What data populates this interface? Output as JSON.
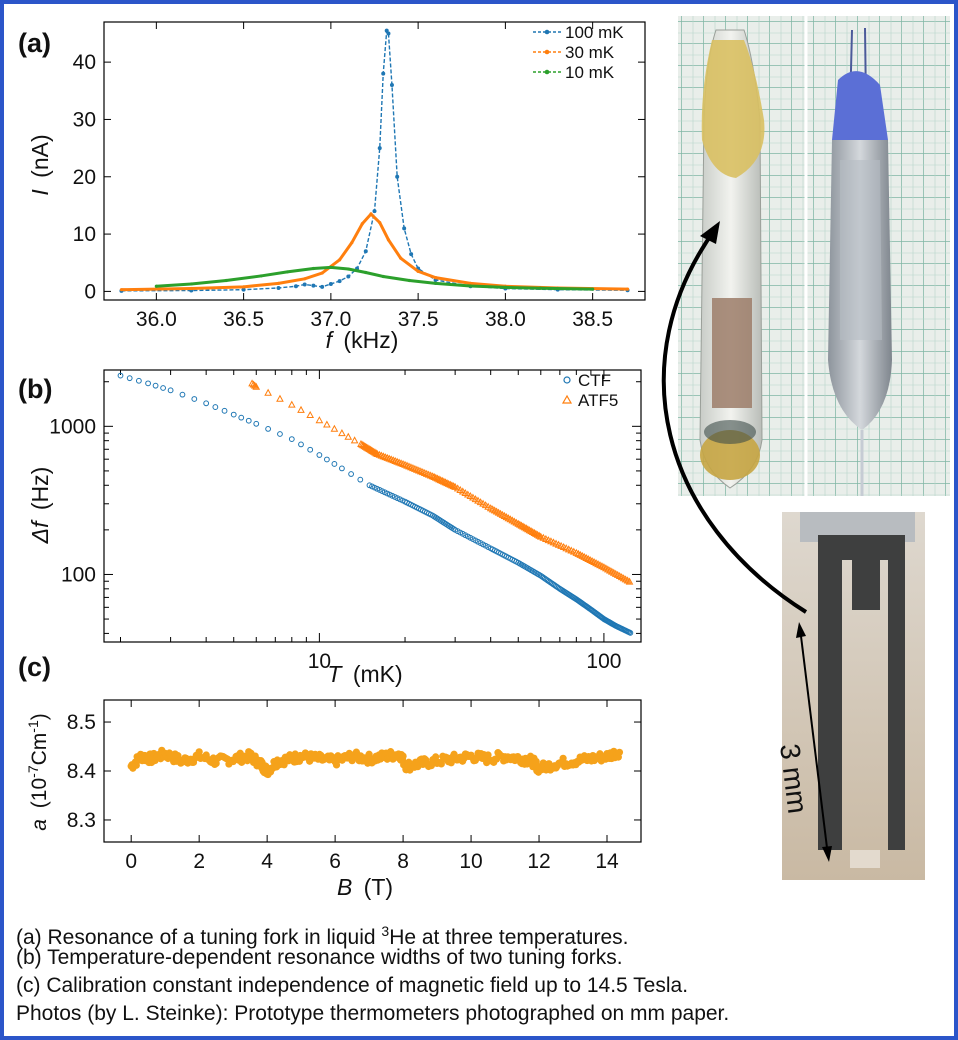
{
  "colors": {
    "border": "#2b55c9",
    "blue": "#1f77b4",
    "orange": "#ff7f0e",
    "green": "#2ca02c",
    "gold": "#f5a21b"
  },
  "panel_labels": {
    "a": "(a)",
    "b": "(b)",
    "c": "(c)"
  },
  "chart_data": [
    {
      "type": "line",
      "panel": "a",
      "xlabel_var": "f",
      "xlabel_unit": "(kHz)",
      "ylabel_var": "I",
      "ylabel_unit": "(nA)",
      "xlim": [
        35.7,
        38.8
      ],
      "ylim": [
        -1.5,
        47
      ],
      "xticks": [
        "36.0",
        "36.5",
        "37.0",
        "37.5",
        "38.0",
        "38.5"
      ],
      "yticks": [
        "0",
        "10",
        "20",
        "30",
        "40"
      ],
      "legend_position": "top-right",
      "series": [
        {
          "name": "100 mK",
          "color": "#1f77b4",
          "x": [
            35.8,
            36.2,
            36.5,
            36.7,
            36.8,
            36.85,
            36.9,
            36.95,
            37.0,
            37.05,
            37.1,
            37.15,
            37.2,
            37.25,
            37.28,
            37.3,
            37.32,
            37.33,
            37.35,
            37.38,
            37.42,
            37.46,
            37.5,
            37.6,
            37.8,
            38.0,
            38.3,
            38.7
          ],
          "y": [
            0.1,
            0.15,
            0.3,
            0.6,
            0.9,
            1.2,
            1.0,
            0.8,
            1.3,
            1.8,
            2.6,
            4.0,
            7.0,
            14.0,
            25.0,
            38.0,
            45.5,
            45.0,
            36.0,
            20.0,
            11.0,
            6.5,
            4.0,
            2.0,
            0.9,
            0.5,
            0.3,
            0.2
          ]
        },
        {
          "name": "30 mK",
          "color": "#ff7f0e",
          "x": [
            35.8,
            36.2,
            36.5,
            36.7,
            36.85,
            36.95,
            37.05,
            37.12,
            37.18,
            37.23,
            37.28,
            37.33,
            37.4,
            37.5,
            37.6,
            37.8,
            38.0,
            38.3,
            38.7
          ],
          "y": [
            0.3,
            0.5,
            0.8,
            1.4,
            2.2,
            3.2,
            5.5,
            8.5,
            11.8,
            13.5,
            12.0,
            9.0,
            5.8,
            3.5,
            2.4,
            1.4,
            0.9,
            0.6,
            0.4
          ]
        },
        {
          "name": "10 mK",
          "color": "#2ca02c",
          "x": [
            36.0,
            36.2,
            36.4,
            36.6,
            36.75,
            36.9,
            37.0,
            37.1,
            37.2,
            37.3,
            37.45,
            37.6,
            37.8,
            38.0,
            38.2,
            38.5
          ],
          "y": [
            0.9,
            1.3,
            1.9,
            2.7,
            3.4,
            4.0,
            4.2,
            3.9,
            3.3,
            2.6,
            1.9,
            1.4,
            0.95,
            0.7,
            0.55,
            0.4
          ]
        }
      ]
    },
    {
      "type": "scatter",
      "panel": "b",
      "xlabel_var": "T",
      "xlabel_unit": "(mK)",
      "ylabel_var": "Δf",
      "ylabel_unit": "(Hz)",
      "x_scale": "log",
      "y_scale": "log",
      "xlim": [
        1.75,
        135
      ],
      "ylim": [
        35,
        2400
      ],
      "xticks": [
        "10",
        "100"
      ],
      "yticks": [
        "100",
        "1000"
      ],
      "legend_position": "top-right",
      "series": [
        {
          "name": "CTF",
          "color": "#1f77b4",
          "marker": "circle",
          "x": [
            2,
            2.5,
            3,
            4,
            5,
            6,
            8,
            10,
            12,
            15,
            20,
            25,
            30,
            40,
            50,
            60,
            70,
            80,
            90,
            100,
            110,
            125
          ],
          "y": [
            2200,
            1950,
            1750,
            1430,
            1200,
            1040,
            820,
            640,
            520,
            400,
            310,
            250,
            200,
            150,
            120,
            98,
            80,
            68,
            58,
            50,
            45,
            40
          ]
        },
        {
          "name": "ATF5",
          "color": "#ff7f0e",
          "marker": "triangle",
          "x": [
            5.8,
            6,
            8,
            10,
            12,
            14,
            16,
            20,
            25,
            30,
            40,
            50,
            60,
            80,
            100,
            125
          ],
          "y": [
            1950,
            1850,
            1400,
            1100,
            900,
            760,
            650,
            550,
            460,
            390,
            280,
            220,
            180,
            140,
            112,
            88
          ]
        }
      ]
    },
    {
      "type": "scatter",
      "panel": "c",
      "xlabel_var": "B",
      "xlabel_unit": "(T)",
      "ylabel_var": "a",
      "ylabel_unit_pre": "(10",
      "ylabel_unit_sup1": "-7",
      "ylabel_unit_mid": "Cm",
      "ylabel_unit_sup2": "-1",
      "ylabel_unit_post": ")",
      "xlim": [
        -0.8,
        15
      ],
      "ylim": [
        8.255,
        8.545
      ],
      "xticks": [
        "0",
        "2",
        "4",
        "6",
        "8",
        "10",
        "12",
        "14"
      ],
      "yticks": [
        "8.3",
        "8.4",
        "8.5"
      ],
      "series": [
        {
          "name": "",
          "color": "#f5a21b",
          "x": [
            0,
            0.3,
            0.6,
            1.0,
            1.5,
            2.0,
            2.5,
            3.0,
            3.5,
            3.8,
            4.0,
            4.3,
            4.7,
            5.0,
            5.5,
            6.0,
            6.5,
            7.0,
            7.5,
            7.9,
            8.1,
            8.5,
            9.0,
            9.5,
            10.0,
            10.5,
            11.0,
            11.5,
            11.8,
            12.0,
            12.5,
            13.0,
            13.5,
            14.0,
            14.4
          ],
          "y": [
            8.41,
            8.43,
            8.425,
            8.435,
            8.42,
            8.43,
            8.42,
            8.425,
            8.43,
            8.415,
            8.4,
            8.42,
            8.425,
            8.43,
            8.425,
            8.42,
            8.43,
            8.425,
            8.43,
            8.435,
            8.41,
            8.415,
            8.42,
            8.425,
            8.43,
            8.425,
            8.43,
            8.425,
            8.42,
            8.405,
            8.415,
            8.42,
            8.425,
            8.43,
            8.44
          ]
        }
      ]
    }
  ],
  "photo_annotation": {
    "scale_label": "3 mm"
  },
  "captions": [
    {
      "pre": "(a) Resonance of a tuning fork in liquid ",
      "sup": "3",
      "post": "He at three temperatures."
    },
    {
      "text": "(b) Temperature-dependent resonance widths of two tuning forks."
    },
    {
      "text": "(c)  Calibration constant independence of magnetic field up to 14.5 Tesla."
    },
    {
      "text": "Photos (by L. Steinke): Prototype thermometers photographed on mm paper."
    }
  ]
}
